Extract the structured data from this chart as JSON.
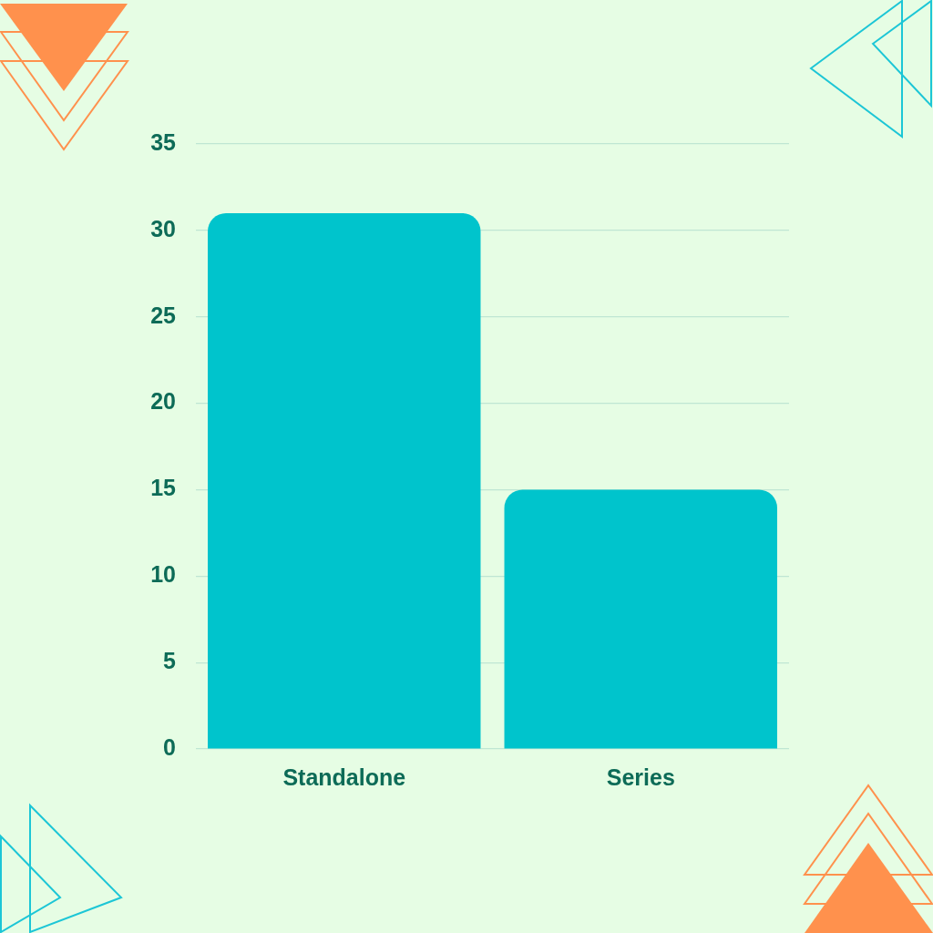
{
  "chart_data": {
    "type": "bar",
    "categories": [
      "Standalone",
      "Series"
    ],
    "values": [
      31,
      15
    ],
    "color": "#00c4cc",
    "ylim": [
      0,
      35
    ],
    "yticks": [
      0,
      5,
      10,
      15,
      20,
      25,
      30,
      35
    ],
    "grid": "y",
    "legend": false
  }
}
